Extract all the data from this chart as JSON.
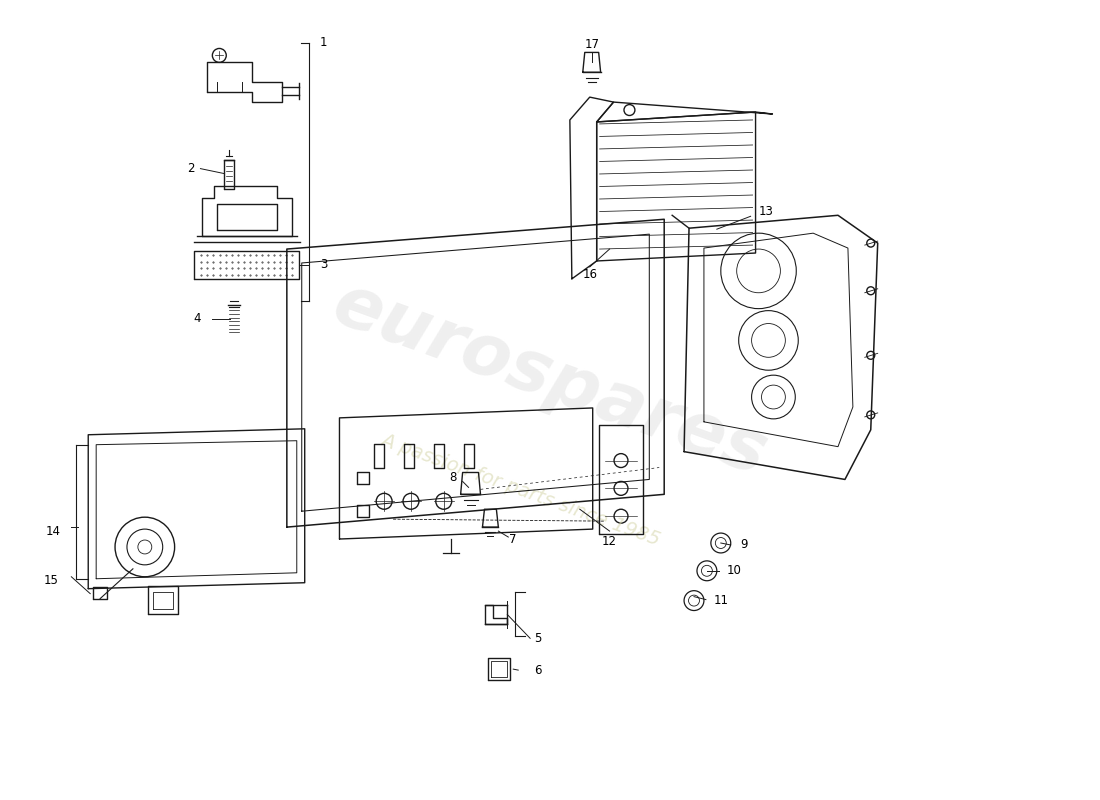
{
  "background_color": "#ffffff",
  "line_color": "#1a1a1a",
  "watermark_color": "#c8c8c8",
  "watermark_subcolor": "#d4d4b0",
  "fig_w": 11.0,
  "fig_h": 8.0,
  "dpi": 100
}
